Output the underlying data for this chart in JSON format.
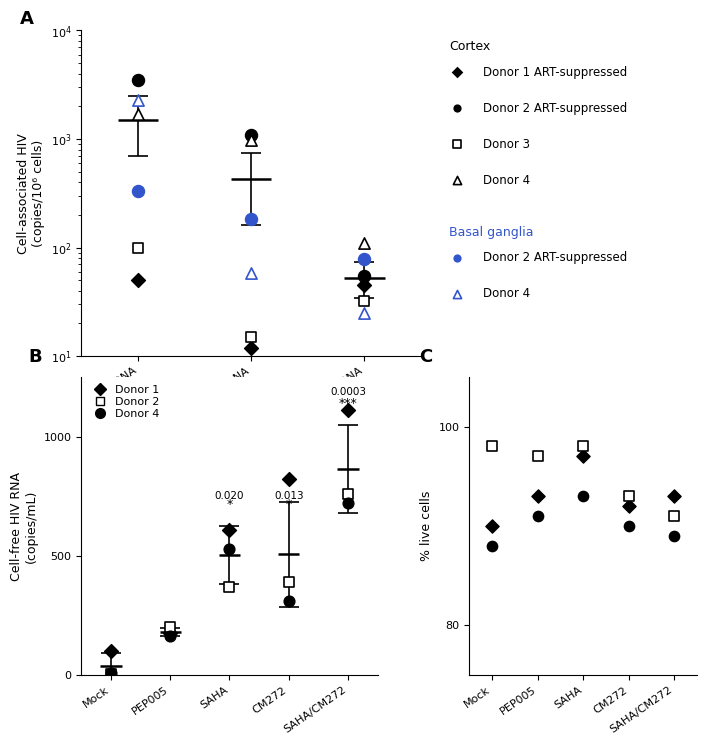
{
  "panel_A": {
    "categories": [
      "Total DNA",
      "Integrated DNA",
      "HIV RNA"
    ],
    "cortex_donor1": {
      "values": {
        "Total DNA": 50,
        "Integrated DNA": 12,
        "HIV RNA": 45
      }
    },
    "cortex_donor2": {
      "values": {
        "Total DNA": 3500,
        "Integrated DNA": 1100,
        "HIV RNA": 55
      }
    },
    "cortex_donor3": {
      "values": {
        "Total DNA": 100,
        "Integrated DNA": 15,
        "HIV RNA": 32
      }
    },
    "cortex_donor4": {
      "values": {
        "Total DNA": 1700,
        "Integrated DNA": 980,
        "HIV RNA": 110
      }
    },
    "bg_donor2": {
      "values": {
        "Total DNA": 330,
        "Integrated DNA": 185,
        "HIV RNA": 78
      }
    },
    "bg_donor4": {
      "values": {
        "Total DNA": 2300,
        "Integrated DNA": 58,
        "HIV RNA": 25
      }
    },
    "mean_bars": {
      "Total DNA": {
        "mean": 1500,
        "err_low": 800,
        "err_high": 1000
      },
      "Integrated DNA": {
        "mean": 430,
        "err_low": 270,
        "err_high": 320
      },
      "HIV RNA": {
        "mean": 52,
        "err_low": 18,
        "err_high": 22
      }
    },
    "ylabel": "Cell-associated HIV\n(copies/10⁶ cells)",
    "ylim": [
      10,
      10000
    ],
    "yticks": [
      10,
      100,
      1000,
      10000
    ]
  },
  "panel_B": {
    "categories": [
      "Mock",
      "PEP005",
      "SAHA",
      "CM272",
      "SAHA/CM272"
    ],
    "donor1": {
      "values": [
        100,
        175,
        610,
        820,
        1110
      ]
    },
    "donor2": {
      "values": [
        5,
        200,
        370,
        390,
        760
      ]
    },
    "donor4": {
      "values": [
        10,
        165,
        530,
        310,
        720
      ]
    },
    "mean_bars": {
      "Mock": {
        "mean": 38,
        "err": 55
      },
      "PEP005": {
        "mean": 180,
        "err": 15
      },
      "SAHA": {
        "mean": 503,
        "err": 120
      },
      "CM272": {
        "mean": 507,
        "err": 220
      },
      "SAHA/CM272": {
        "mean": 863,
        "err": 185
      }
    },
    "pvalues": {
      "SAHA": "0.020",
      "CM272": "0.013",
      "SAHA/CM272": "0.0003"
    },
    "stars": {
      "SAHA": "*",
      "CM272": "*",
      "SAHA/CM272": "***"
    },
    "ylabel": "Cell-free HIV RNA\n(copies/mL)",
    "ylim": [
      0,
      1250
    ],
    "yticks": [
      0,
      500,
      1000
    ]
  },
  "panel_C": {
    "categories": [
      "Mock",
      "PEP005",
      "SAHA",
      "CM272",
      "SAHA/CM272"
    ],
    "donor1": {
      "values": [
        90,
        93,
        97,
        92,
        93
      ]
    },
    "donor2": {
      "values": [
        98,
        97,
        98,
        93,
        91
      ]
    },
    "donor4": {
      "values": [
        88,
        91,
        93,
        90,
        89
      ]
    },
    "ylabel": "% live cells",
    "ylim": [
      75,
      105
    ],
    "yticks": [
      80,
      100
    ]
  },
  "legend": {
    "cortex_title": "Cortex",
    "cortex_entries": [
      {
        "marker": "D",
        "filled": true,
        "color": "black",
        "label": "Donor 1 ART-suppressed"
      },
      {
        "marker": "o",
        "filled": true,
        "color": "black",
        "label": "Donor 2 ART-suppressed"
      },
      {
        "marker": "s",
        "filled": false,
        "color": "black",
        "label": "Donor 3"
      },
      {
        "marker": "^",
        "filled": false,
        "color": "black",
        "label": "Donor 4"
      }
    ],
    "bg_title": "Basal ganglia",
    "bg_color": "#3355cc",
    "bg_entries": [
      {
        "marker": "o",
        "filled": true,
        "color": "#3355cc",
        "label": "Donor 2 ART-suppressed"
      },
      {
        "marker": "^",
        "filled": false,
        "color": "#3355cc",
        "label": "Donor 4"
      }
    ]
  }
}
